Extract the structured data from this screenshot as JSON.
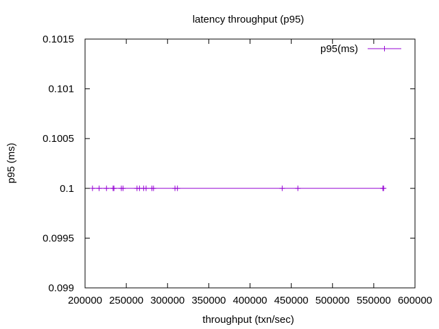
{
  "chart_data": {
    "type": "line",
    "title": "latency throughput (p95)",
    "xlabel": "throughput (txn/sec)",
    "ylabel": "p95 (ms)",
    "xlim": [
      200000,
      600000
    ],
    "ylim": [
      0.099,
      0.1015
    ],
    "x_ticks": [
      "200000",
      "250000",
      "300000",
      "350000",
      "400000",
      "450000",
      "500000",
      "550000",
      "600000"
    ],
    "y_ticks": [
      "0.099",
      "0.0995",
      "0.1",
      "0.1005",
      "0.101",
      "0.1015"
    ],
    "legend_position": "top-right",
    "grid": false,
    "series": [
      {
        "name": "p95(ms)",
        "color": "#9400d3",
        "marker": "plus",
        "x": [
          209000,
          217000,
          226000,
          234000,
          235000,
          244000,
          246000,
          263000,
          266000,
          271000,
          274000,
          281000,
          283000,
          309000,
          312000,
          439000,
          458000,
          561000,
          562000
        ],
        "y": [
          0.1,
          0.1,
          0.1,
          0.1,
          0.1,
          0.1,
          0.1,
          0.1,
          0.1,
          0.1,
          0.1,
          0.1,
          0.1,
          0.1,
          0.1,
          0.1,
          0.1,
          0.1,
          0.1
        ]
      }
    ]
  }
}
